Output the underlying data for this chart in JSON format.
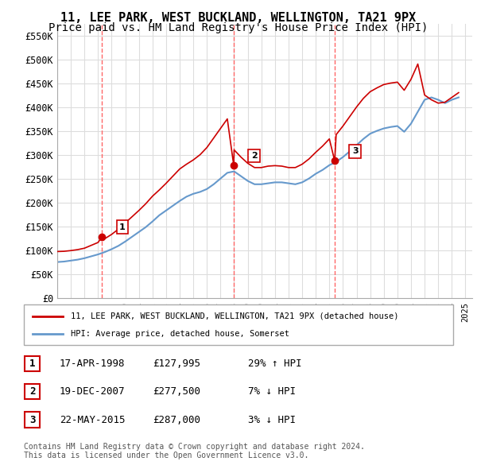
{
  "title": "11, LEE PARK, WEST BUCKLAND, WELLINGTON, TA21 9PX",
  "subtitle": "Price paid vs. HM Land Registry's House Price Index (HPI)",
  "title_fontsize": 11,
  "subtitle_fontsize": 10,
  "ylim": [
    0,
    575000
  ],
  "yticks": [
    0,
    50000,
    100000,
    150000,
    200000,
    250000,
    300000,
    350000,
    400000,
    450000,
    500000,
    550000
  ],
  "ytick_labels": [
    "£0",
    "£50K",
    "£100K",
    "£150K",
    "£200K",
    "£250K",
    "£300K",
    "£350K",
    "£400K",
    "£450K",
    "£500K",
    "£550K"
  ],
  "xlim_start": 1995.0,
  "xlim_end": 2025.5,
  "xtick_years": [
    1995,
    1996,
    1997,
    1998,
    1999,
    2000,
    2001,
    2002,
    2003,
    2004,
    2005,
    2006,
    2007,
    2008,
    2009,
    2010,
    2011,
    2012,
    2013,
    2014,
    2015,
    2016,
    2017,
    2018,
    2019,
    2020,
    2021,
    2022,
    2023,
    2024,
    2025
  ],
  "sale_dates": [
    1998.29,
    2007.97,
    2015.39
  ],
  "sale_prices": [
    127995,
    277500,
    287000
  ],
  "sale_labels": [
    "1",
    "2",
    "3"
  ],
  "red_color": "#cc0000",
  "blue_color": "#6699cc",
  "vline_color": "#ff6666",
  "grid_color": "#dddddd",
  "bg_color": "#ffffff",
  "legend_entries": [
    "11, LEE PARK, WEST BUCKLAND, WELLINGTON, TA21 9PX (detached house)",
    "HPI: Average price, detached house, Somerset"
  ],
  "table_rows": [
    {
      "num": "1",
      "date": "17-APR-1998",
      "price": "£127,995",
      "hpi": "29% ↑ HPI"
    },
    {
      "num": "2",
      "date": "19-DEC-2007",
      "price": "£277,500",
      "hpi": "7% ↓ HPI"
    },
    {
      "num": "3",
      "date": "22-MAY-2015",
      "price": "£287,000",
      "hpi": "3% ↓ HPI"
    }
  ],
  "footer": "Contains HM Land Registry data © Crown copyright and database right 2024.\nThis data is licensed under the Open Government Licence v3.0.",
  "hpi_x": [
    1995.0,
    1995.5,
    1996.0,
    1996.5,
    1997.0,
    1997.5,
    1998.0,
    1998.5,
    1999.0,
    1999.5,
    2000.0,
    2000.5,
    2001.0,
    2001.5,
    2002.0,
    2002.5,
    2003.0,
    2003.5,
    2004.0,
    2004.5,
    2005.0,
    2005.5,
    2006.0,
    2006.5,
    2007.0,
    2007.5,
    2008.0,
    2008.5,
    2009.0,
    2009.5,
    2010.0,
    2010.5,
    2011.0,
    2011.5,
    2012.0,
    2012.5,
    2013.0,
    2013.5,
    2014.0,
    2014.5,
    2015.0,
    2015.5,
    2016.0,
    2016.5,
    2017.0,
    2017.5,
    2018.0,
    2018.5,
    2019.0,
    2019.5,
    2020.0,
    2020.5,
    2021.0,
    2021.5,
    2022.0,
    2022.5,
    2023.0,
    2023.5,
    2024.0,
    2024.5
  ],
  "hpi_y": [
    75000,
    76000,
    78000,
    80000,
    83000,
    87000,
    91000,
    96000,
    102000,
    109000,
    118000,
    128000,
    138000,
    148000,
    160000,
    173000,
    183000,
    193000,
    203000,
    212000,
    218000,
    222000,
    228000,
    238000,
    250000,
    262000,
    265000,
    255000,
    245000,
    238000,
    238000,
    240000,
    242000,
    242000,
    240000,
    238000,
    242000,
    250000,
    260000,
    268000,
    278000,
    285000,
    295000,
    307000,
    320000,
    333000,
    344000,
    350000,
    355000,
    358000,
    360000,
    348000,
    365000,
    390000,
    415000,
    420000,
    415000,
    408000,
    415000,
    420000
  ],
  "red_x": [
    1995.0,
    1995.5,
    1996.0,
    1996.5,
    1997.0,
    1997.5,
    1998.0,
    1998.29,
    1998.5,
    1999.0,
    1999.5,
    2000.0,
    2000.5,
    2001.0,
    2001.5,
    2002.0,
    2002.5,
    2003.0,
    2003.5,
    2004.0,
    2004.5,
    2005.0,
    2005.5,
    2006.0,
    2006.5,
    2007.0,
    2007.5,
    2007.97,
    2008.0,
    2008.5,
    2009.0,
    2009.5,
    2010.0,
    2010.5,
    2011.0,
    2011.5,
    2012.0,
    2012.5,
    2013.0,
    2013.5,
    2014.0,
    2014.5,
    2015.0,
    2015.39,
    2015.5,
    2016.0,
    2016.5,
    2017.0,
    2017.5,
    2018.0,
    2018.5,
    2019.0,
    2019.5,
    2020.0,
    2020.5,
    2021.0,
    2021.5,
    2022.0,
    2022.5,
    2023.0,
    2023.5,
    2024.0,
    2024.5
  ],
  "red_y": [
    97000,
    97500,
    99000,
    101000,
    104000,
    110000,
    116000,
    127995,
    124000,
    133000,
    144000,
    157000,
    170000,
    183000,
    197000,
    213000,
    226000,
    240000,
    255000,
    270000,
    280000,
    289000,
    300000,
    315000,
    335000,
    355000,
    375000,
    277500,
    310000,
    295000,
    282000,
    273000,
    273000,
    276000,
    277000,
    276000,
    273000,
    273000,
    280000,
    291000,
    305000,
    318000,
    333000,
    287000,
    342000,
    360000,
    380000,
    400000,
    418000,
    432000,
    440000,
    447000,
    450000,
    452000,
    435000,
    458000,
    490000,
    425000,
    415000,
    408000,
    410000,
    420000,
    430000
  ]
}
